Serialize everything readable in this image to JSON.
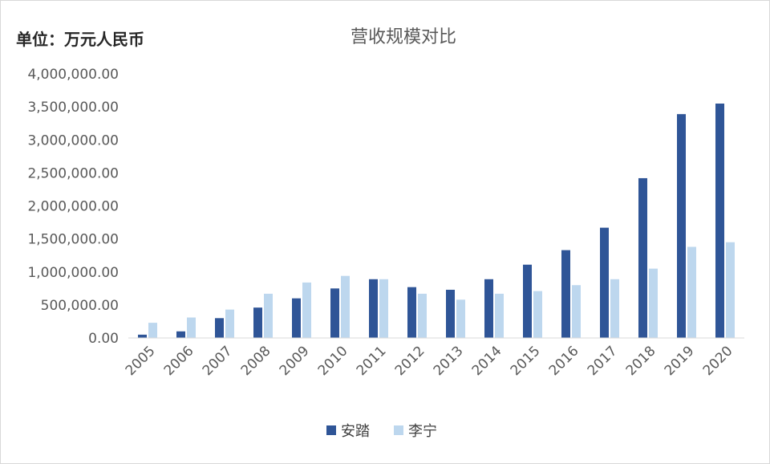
{
  "chart_data": {
    "type": "bar",
    "title": "营收规模对比",
    "unit_label": "单位：万元人民币",
    "categories": [
      "2005",
      "2006",
      "2007",
      "2008",
      "2009",
      "2010",
      "2011",
      "2012",
      "2013",
      "2014",
      "2015",
      "2016",
      "2017",
      "2018",
      "2019",
      "2020"
    ],
    "series": [
      {
        "name": "安踏",
        "color": "#2f5597",
        "values": [
          50000,
          100000,
          300000,
          460000,
          600000,
          750000,
          890000,
          770000,
          730000,
          890000,
          1110000,
          1330000,
          1670000,
          2420000,
          3390000,
          3550000
        ]
      },
      {
        "name": "李宁",
        "color": "#bdd7ee",
        "values": [
          230000,
          310000,
          430000,
          670000,
          840000,
          940000,
          890000,
          670000,
          580000,
          670000,
          710000,
          800000,
          890000,
          1050000,
          1380000,
          1450000
        ]
      }
    ],
    "ylim": [
      0,
      4000000
    ],
    "yticks": [
      "0.00",
      "500,000.00",
      "1,000,000.00",
      "1,500,000.00",
      "2,000,000.00",
      "2,500,000.00",
      "3,000,000.00",
      "3,500,000.00",
      "4,000,000.00"
    ],
    "legend_position": "bottom",
    "grid": false
  }
}
